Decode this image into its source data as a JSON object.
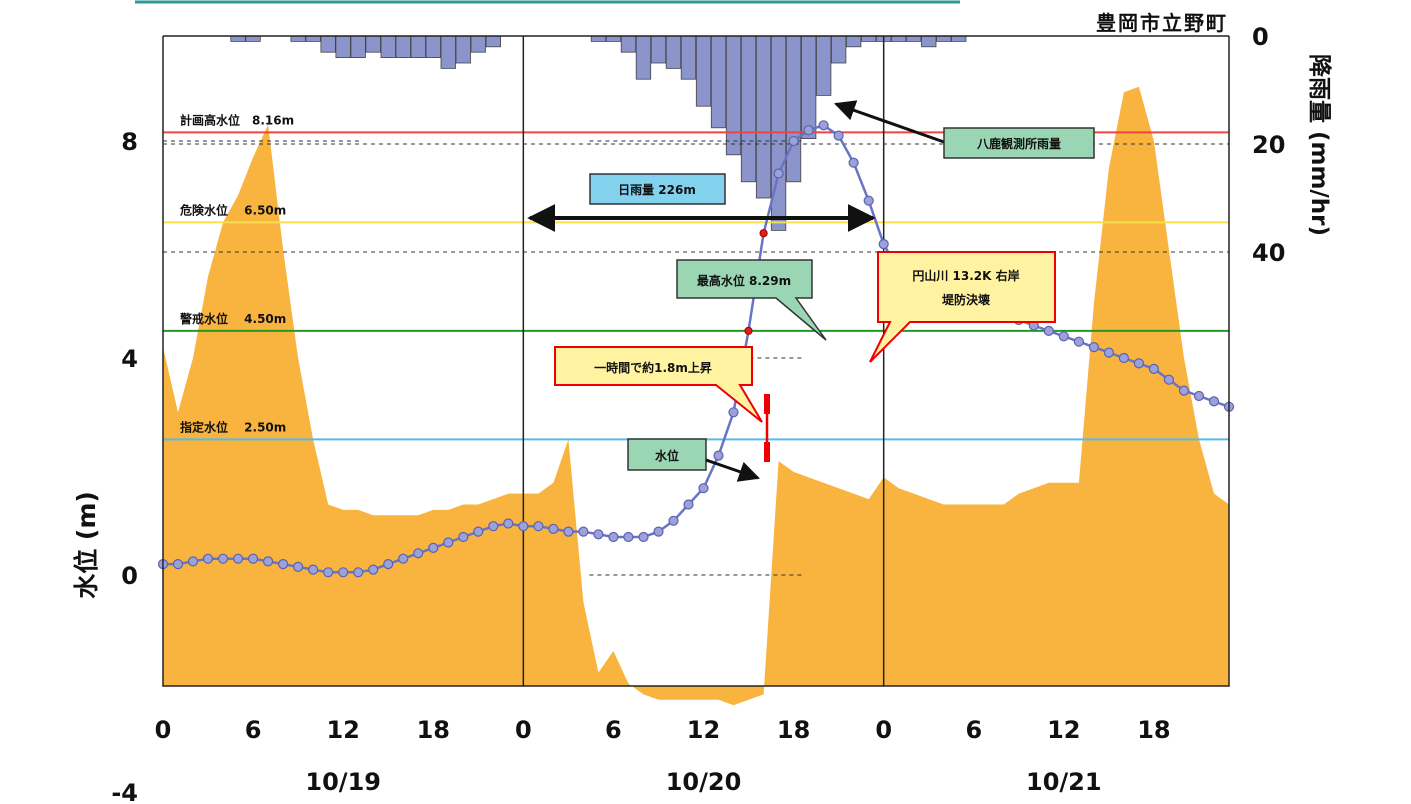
{
  "chart_data": {
    "type": "line",
    "location": "豊岡市立野町",
    "ylabel_left": "水位 (m)",
    "ylabel_right": "降雨量 (mm/hr)",
    "water_axis": {
      "min": -4,
      "max": 8,
      "ticks": [
        "8",
        "4",
        "0",
        "-4"
      ]
    },
    "rain_axis": {
      "min": 0,
      "max": 40,
      "ticks": [
        "0",
        "20",
        "40"
      ]
    },
    "x_range_hours": [
      0,
      71
    ],
    "x_tick_labels": [
      "0",
      "6",
      "12",
      "18",
      "0",
      "6",
      "12",
      "18",
      "0",
      "6",
      "12",
      "18"
    ],
    "dates": [
      {
        "label": "10/19",
        "center_hour": 12
      },
      {
        "label": "10/20",
        "center_hour": 36
      },
      {
        "label": "10/21",
        "center_hour": 60
      }
    ],
    "reference_levels": [
      {
        "label": "計画高水位　8.16m",
        "value": 8.16,
        "color": "#ee4444"
      },
      {
        "label": "危険水位　 6.50m",
        "value": 6.5,
        "color": "#f4e04a"
      },
      {
        "label": "警戒水位　 4.50m",
        "value": 4.5,
        "color": "#229922"
      },
      {
        "label": "指定水位　 2.50m",
        "value": 2.5,
        "color": "#55bbee"
      }
    ],
    "series": [
      {
        "name": "水位",
        "color": "#6a74c4",
        "x": [
          0,
          1,
          2,
          3,
          4,
          5,
          6,
          7,
          8,
          9,
          10,
          11,
          12,
          13,
          14,
          15,
          16,
          17,
          18,
          19,
          20,
          21,
          22,
          23,
          24,
          25,
          26,
          27,
          28,
          29,
          30,
          31,
          32,
          33,
          34,
          35,
          36,
          37,
          38,
          39,
          40,
          41,
          42,
          43,
          44,
          45,
          46,
          47,
          48,
          49,
          50,
          51,
          52,
          53,
          54,
          55,
          56,
          57,
          58,
          59,
          60,
          61,
          62,
          63,
          64,
          65,
          66,
          67,
          68,
          69,
          70,
          71
        ],
        "values": [
          0.2,
          0.2,
          0.25,
          0.3,
          0.3,
          0.3,
          0.3,
          0.25,
          0.2,
          0.15,
          0.1,
          0.05,
          0.05,
          0.05,
          0.1,
          0.2,
          0.3,
          0.4,
          0.5,
          0.6,
          0.7,
          0.8,
          0.9,
          0.95,
          0.9,
          0.9,
          0.85,
          0.8,
          0.8,
          0.75,
          0.7,
          0.7,
          0.7,
          0.8,
          1.0,
          1.3,
          1.6,
          2.2,
          3.0,
          4.5,
          6.3,
          7.4,
          8.0,
          8.2,
          8.29,
          8.1,
          7.6,
          6.9,
          6.1,
          5.6,
          5.3,
          5.1,
          5.05,
          5.0,
          4.95,
          4.9,
          4.8,
          4.7,
          4.6,
          4.5,
          4.4,
          4.3,
          4.2,
          4.1,
          4.0,
          3.9,
          3.8,
          3.6,
          3.4,
          3.3,
          3.2,
          3.1
        ]
      },
      {
        "name": "八鹿観測所雨量",
        "color": "#8c94cc",
        "x": [
          5,
          6,
          9,
          10,
          11,
          12,
          13,
          14,
          15,
          16,
          17,
          18,
          19,
          20,
          21,
          22,
          29,
          30,
          31,
          32,
          33,
          34,
          35,
          36,
          37,
          38,
          39,
          40,
          41,
          42,
          43,
          44,
          45,
          46,
          47,
          48,
          49,
          50,
          51,
          52,
          53
        ],
        "values": [
          1,
          1,
          1,
          1,
          3,
          4,
          4,
          3,
          4,
          4,
          4,
          4,
          6,
          5,
          3,
          2,
          1,
          1,
          3,
          8,
          5,
          6,
          8,
          13,
          17,
          22,
          27,
          30,
          36,
          27,
          19,
          11,
          5,
          2,
          1,
          1,
          1,
          1,
          2,
          1,
          1
        ]
      }
    ],
    "area_series": {
      "name": "",
      "color": "#f8b43e",
      "x": [
        0,
        1,
        2,
        3,
        4,
        5,
        6,
        7,
        8,
        9,
        10,
        11,
        12,
        13,
        14,
        15,
        16,
        17,
        18,
        19,
        20,
        21,
        22,
        23,
        24,
        25,
        26,
        27,
        28,
        29,
        30,
        31,
        32,
        33,
        34,
        35,
        36,
        37,
        38,
        39,
        40,
        41,
        42,
        43,
        44,
        45,
        46,
        47,
        48,
        49,
        50,
        51,
        52,
        53,
        54,
        55,
        56,
        57,
        58,
        59,
        60,
        61,
        62,
        63,
        64,
        65,
        66,
        67,
        68,
        69,
        70,
        71
      ],
      "values": [
        4.2,
        3.0,
        4.0,
        5.5,
        6.5,
        7.0,
        7.7,
        8.3,
        6.0,
        4.0,
        2.5,
        1.3,
        1.2,
        1.2,
        1.1,
        1.1,
        1.1,
        1.1,
        1.2,
        1.2,
        1.3,
        1.3,
        1.4,
        1.5,
        1.5,
        1.5,
        1.7,
        2.5,
        -0.5,
        -1.8,
        -1.4,
        -2.0,
        -2.2,
        -2.3,
        -2.3,
        -2.3,
        -2.3,
        -2.3,
        -2.4,
        -2.3,
        -2.2,
        2.1,
        1.9,
        1.8,
        1.7,
        1.6,
        1.5,
        1.4,
        1.8,
        1.6,
        1.5,
        1.4,
        1.3,
        1.3,
        1.3,
        1.3,
        1.3,
        1.5,
        1.6,
        1.7,
        1.7,
        1.7,
        5.0,
        7.5,
        8.9,
        9.0,
        8.0,
        6.0,
        4.0,
        2.5,
        1.5,
        1.3
      ]
    },
    "annotations": {
      "daily_rain": "日雨量 226m",
      "max_level": "最高水位 8.29m",
      "breach_line1": "円山川 13.2K 右岸",
      "breach_line2": "堤防決壊",
      "rise": "一時間で約1.8m上昇",
      "water_level": "水位",
      "rain_station": "八鹿観測所雨量"
    }
  }
}
